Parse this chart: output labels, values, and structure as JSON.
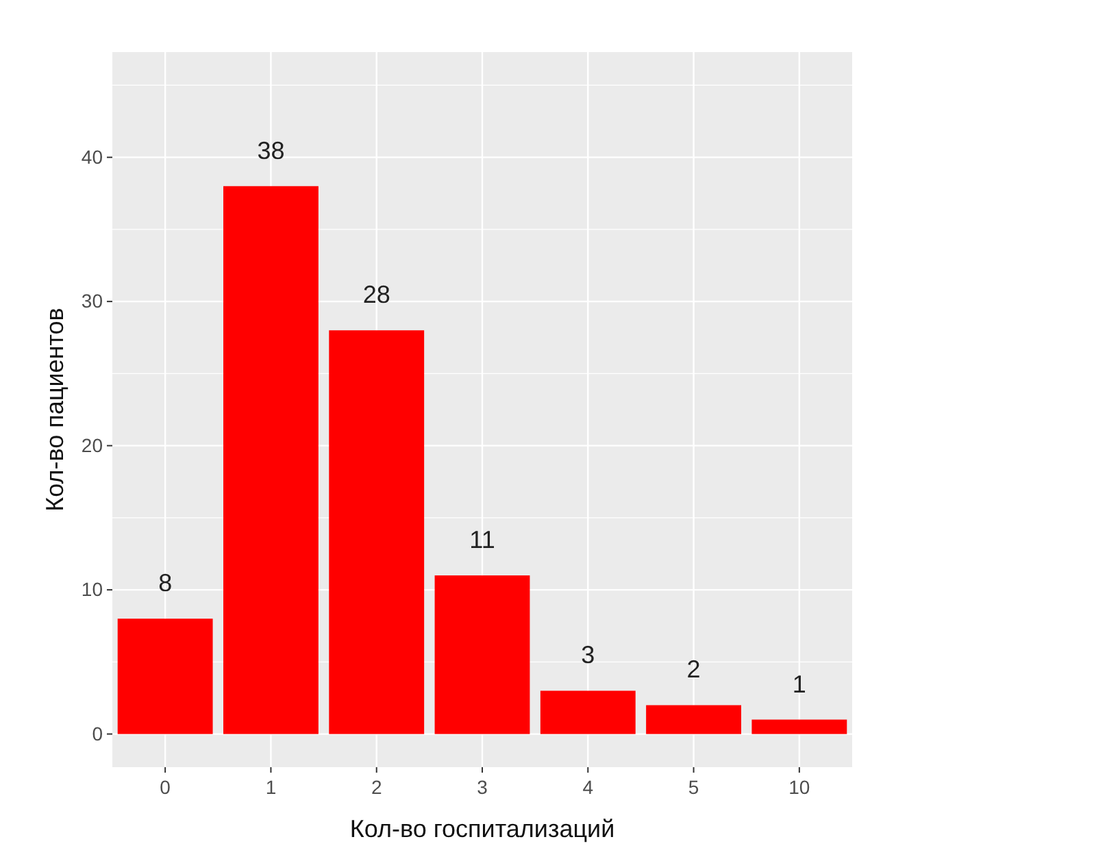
{
  "chart_data": {
    "type": "bar",
    "xlabel": "Кол-во госпитализаций",
    "ylabel": "Кол-во пациентов",
    "categories": [
      "0",
      "1",
      "2",
      "3",
      "4",
      "5",
      "10"
    ],
    "values": [
      8,
      38,
      28,
      11,
      3,
      2,
      1
    ],
    "color": "#ff0000",
    "ylim": [
      -2.3,
      47.3
    ],
    "yticks": [
      0,
      {
        "value": 5,
        "label": null
      },
      10,
      {
        "value": 15,
        "label": null
      },
      20,
      {
        "value": 25,
        "label": null
      },
      30,
      {
        "value": 35,
        "label": null
      },
      40,
      {
        "value": 45,
        "label": null
      }
    ],
    "grid": true,
    "data_labels": true
  }
}
